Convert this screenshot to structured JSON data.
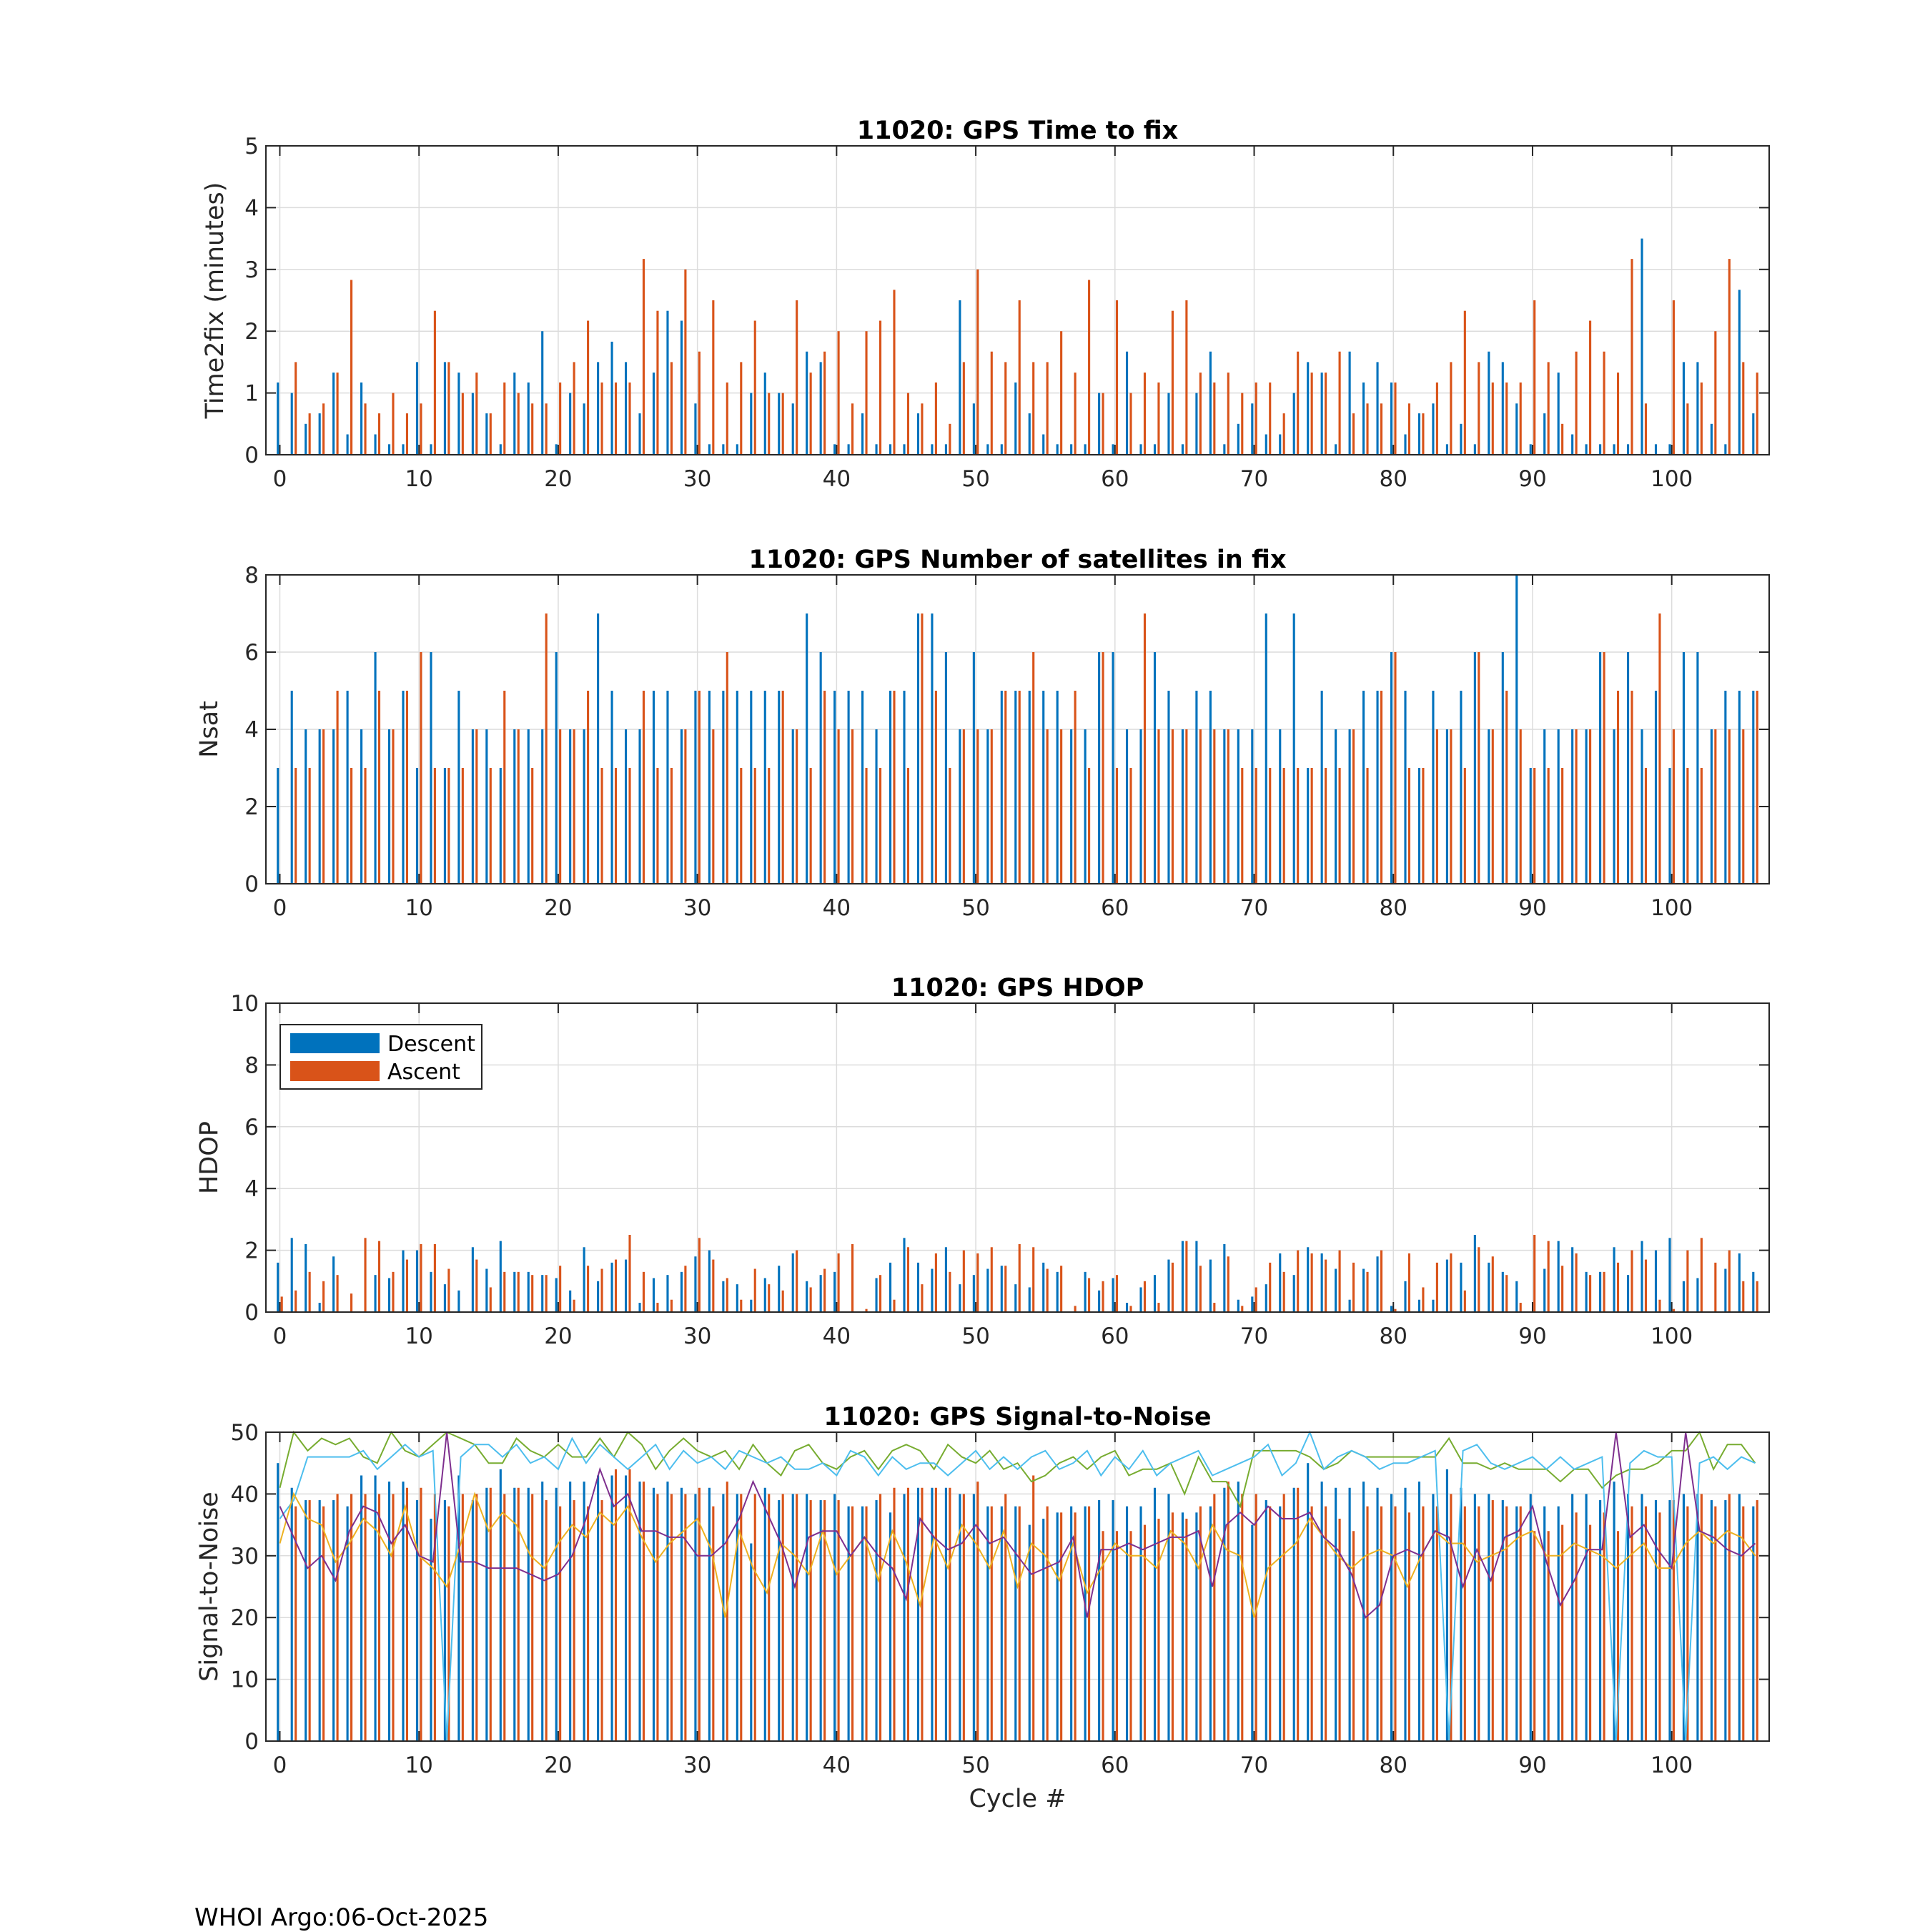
{
  "footer": "WHOI Argo:06-Oct-2025",
  "colors": {
    "descent": "#0072BD",
    "ascent": "#D95319",
    "grid": "#dcdcdc",
    "axes": "#262626"
  },
  "legend": {
    "items": [
      "Descent",
      "Ascent"
    ],
    "placement": "upper-left"
  },
  "chart_data": [
    {
      "type": "bar",
      "title": "11020: GPS Time to fix",
      "ylabel": "Time2fix (minutes)",
      "xlabel": "",
      "xlim": [
        -1,
        107
      ],
      "ylim": [
        0,
        5
      ],
      "xticks": [
        0,
        10,
        20,
        30,
        40,
        50,
        60,
        70,
        80,
        90,
        100
      ],
      "yticks": [
        0,
        1,
        2,
        3,
        4,
        5
      ],
      "grid": true,
      "series": [
        {
          "name": "Descent",
          "values": [
            1.17,
            1.0,
            0.5,
            0.67,
            1.33,
            0.33,
            1.17,
            0.33,
            0.17,
            0.17,
            1.5,
            0.17,
            1.5,
            1.33,
            1.0,
            0.67,
            0.17,
            1.33,
            1.17,
            2.0,
            0.17,
            1.0,
            0.83,
            1.5,
            1.83,
            1.5,
            0.67,
            1.33,
            2.33,
            2.17,
            0.83,
            0.17,
            0.17,
            0.17,
            1.0,
            1.33,
            1.0,
            0.83,
            1.67,
            1.5,
            0.17,
            0.17,
            0.67,
            0.17,
            0.17,
            0.17,
            0.67,
            0.17,
            0.17,
            2.5,
            0.83,
            0.17,
            0.17,
            1.17,
            0.67,
            0.33,
            0.17,
            0.17,
            0.17,
            1.0,
            0.17,
            1.67,
            0.17,
            0.17,
            1.0,
            0.17,
            1.0,
            1.67,
            0.17,
            0.5,
            0.83,
            0.33,
            0.33,
            1.0,
            1.5,
            1.33,
            0.17,
            1.67,
            1.17,
            1.5,
            1.17,
            0.33,
            0.67,
            0.83,
            0.17,
            0.5,
            0.17,
            1.67,
            1.5,
            0.83,
            0.17,
            0.67,
            1.33,
            0.33,
            0.17,
            0.17,
            0.17,
            0.17,
            3.5,
            0.17,
            0.17,
            1.5,
            1.5,
            0.5,
            0.17,
            2.67,
            0.67
          ]
        },
        {
          "name": "Ascent",
          "values": [
            0.0,
            1.5,
            0.67,
            0.83,
            1.33,
            2.83,
            0.83,
            0.67,
            1.0,
            0.67,
            0.83,
            2.33,
            1.5,
            1.0,
            1.33,
            0.67,
            1.17,
            1.0,
            0.83,
            0.83,
            1.17,
            1.5,
            2.17,
            1.17,
            1.17,
            1.17,
            3.17,
            2.33,
            1.5,
            3.0,
            1.67,
            2.5,
            1.17,
            1.5,
            2.17,
            1.0,
            1.0,
            2.5,
            1.33,
            1.67,
            2.0,
            0.83,
            2.0,
            2.17,
            2.67,
            1.0,
            0.83,
            1.17,
            0.5,
            1.5,
            3.0,
            1.67,
            1.5,
            2.5,
            1.5,
            1.5,
            2.0,
            1.33,
            2.83,
            1.0,
            2.5,
            1.0,
            1.33,
            1.17,
            2.33,
            2.5,
            1.33,
            1.17,
            1.33,
            1.0,
            1.17,
            1.17,
            0.67,
            1.67,
            1.33,
            1.33,
            1.67,
            0.67,
            0.83,
            0.83,
            1.17,
            0.83,
            0.67,
            1.17,
            1.5,
            2.33,
            1.5,
            1.17,
            1.17,
            1.17,
            2.5,
            1.5,
            0.5,
            1.67,
            2.17,
            1.67,
            1.33,
            3.17,
            0.83,
            0.0,
            2.5,
            0.83,
            1.17,
            2.0,
            3.17,
            1.5,
            1.33
          ]
        }
      ]
    },
    {
      "type": "bar",
      "title": "11020: GPS Number of satellites in fix",
      "ylabel": "Nsat",
      "xlabel": "",
      "xlim": [
        -1,
        107
      ],
      "ylim": [
        0,
        8
      ],
      "xticks": [
        0,
        10,
        20,
        30,
        40,
        50,
        60,
        70,
        80,
        90,
        100
      ],
      "yticks": [
        0,
        2,
        4,
        6,
        8
      ],
      "grid": true,
      "series": [
        {
          "name": "Descent",
          "values": [
            3,
            5,
            4,
            4,
            4,
            5,
            4,
            6,
            4,
            5,
            3,
            6,
            3,
            5,
            4,
            4,
            3,
            4,
            4,
            4,
            6,
            4,
            4,
            7,
            5,
            4,
            4,
            5,
            5,
            4,
            5,
            5,
            5,
            5,
            5,
            5,
            5,
            4,
            7,
            6,
            5,
            5,
            5,
            4,
            5,
            5,
            7,
            7,
            6,
            4,
            6,
            4,
            5,
            5,
            5,
            5,
            5,
            4,
            4,
            6,
            6,
            4,
            4,
            6,
            5,
            4,
            5,
            5,
            4,
            4,
            4,
            7,
            4,
            7,
            3,
            5,
            4,
            4,
            5,
            5,
            6,
            5,
            3,
            5,
            4,
            5,
            6,
            4,
            6,
            8,
            3,
            4,
            4,
            4,
            4,
            6,
            4,
            6,
            4,
            5,
            3,
            6,
            6,
            4,
            5,
            5,
            5
          ]
        },
        {
          "name": "Ascent",
          "values": [
            0,
            3,
            3,
            4,
            5,
            3,
            3,
            5,
            4,
            5,
            6,
            3,
            3,
            3,
            4,
            3,
            5,
            4,
            3,
            7,
            4,
            4,
            5,
            3,
            3,
            3,
            5,
            3,
            3,
            4,
            5,
            4,
            6,
            3,
            3,
            3,
            5,
            4,
            3,
            5,
            4,
            4,
            3,
            3,
            5,
            3,
            7,
            5,
            3,
            4,
            4,
            4,
            5,
            5,
            6,
            4,
            4,
            5,
            3,
            6,
            3,
            3,
            7,
            4,
            4,
            4,
            4,
            4,
            4,
            3,
            3,
            3,
            3,
            3,
            3,
            3,
            3,
            4,
            3,
            5,
            6,
            3,
            3,
            4,
            4,
            3,
            6,
            4,
            5,
            4,
            3,
            3,
            3,
            4,
            4,
            6,
            5,
            5,
            3,
            7,
            4,
            3,
            3,
            4,
            4,
            4,
            5
          ]
        }
      ]
    },
    {
      "type": "bar",
      "title": "11020: GPS HDOP",
      "ylabel": "HDOP",
      "xlabel": "",
      "xlim": [
        -1,
        107
      ],
      "ylim": [
        0,
        10
      ],
      "xticks": [
        0,
        10,
        20,
        30,
        40,
        50,
        60,
        70,
        80,
        90,
        100
      ],
      "yticks": [
        0,
        2,
        4,
        6,
        8,
        10
      ],
      "grid": true,
      "series": [
        {
          "name": "Descent",
          "values": [
            1.6,
            2.4,
            2.2,
            0.3,
            1.8,
            0.0,
            0.0,
            1.2,
            1.1,
            2.0,
            2.0,
            1.3,
            0.9,
            0.7,
            2.1,
            1.4,
            2.3,
            1.3,
            1.3,
            1.2,
            1.1,
            0.7,
            2.1,
            1.0,
            1.6,
            1.7,
            0.3,
            1.1,
            1.2,
            1.3,
            1.8,
            2.0,
            1.0,
            0.9,
            0.4,
            1.1,
            1.5,
            1.9,
            1.0,
            1.2,
            1.3,
            0.0,
            0.0,
            1.1,
            1.6,
            2.4,
            1.6,
            1.4,
            2.1,
            0.9,
            1.2,
            1.4,
            1.5,
            0.9,
            0.8,
            1.6,
            1.3,
            0.0,
            1.3,
            0.7,
            1.1,
            0.3,
            0.8,
            1.2,
            1.7,
            2.3,
            2.3,
            1.7,
            2.2,
            0.4,
            0.5,
            0.9,
            1.9,
            1.2,
            2.1,
            1.9,
            1.4,
            0.4,
            1.4,
            1.8,
            0.2,
            1.0,
            0.4,
            0.4,
            1.7,
            1.6,
            2.5,
            1.6,
            1.3,
            1.0,
            0.0,
            1.4,
            2.3,
            2.1,
            1.3,
            1.3,
            2.1,
            1.2,
            2.3,
            2.0,
            2.4,
            1.0,
            1.1,
            0.0,
            1.4,
            1.9,
            1.3
          ]
        },
        {
          "name": "Ascent",
          "values": [
            0.5,
            0.7,
            1.3,
            1.0,
            1.2,
            0.6,
            2.4,
            2.3,
            1.3,
            1.7,
            2.2,
            2.2,
            1.4,
            0.0,
            1.7,
            0.8,
            1.3,
            1.3,
            1.2,
            1.2,
            1.5,
            0.4,
            1.5,
            1.4,
            1.7,
            2.5,
            1.3,
            0.3,
            0.4,
            1.5,
            2.4,
            1.7,
            1.1,
            0.4,
            1.4,
            0.9,
            0.7,
            2.0,
            0.8,
            1.4,
            1.9,
            2.2,
            0.1,
            1.2,
            0.4,
            2.1,
            0.9,
            1.9,
            1.3,
            2.0,
            1.9,
            2.1,
            1.5,
            2.2,
            2.1,
            1.4,
            1.5,
            0.2,
            1.1,
            1.0,
            1.2,
            0.2,
            1.0,
            0.3,
            1.6,
            2.3,
            1.5,
            0.3,
            1.8,
            0.2,
            0.8,
            1.6,
            1.3,
            2.0,
            1.9,
            1.7,
            2.0,
            1.6,
            1.3,
            2.0,
            0.1,
            1.9,
            0.8,
            1.6,
            1.9,
            0.7,
            2.1,
            1.8,
            1.2,
            0.3,
            2.5,
            2.3,
            1.5,
            1.9,
            1.2,
            1.3,
            1.6,
            2.0,
            1.7,
            0.4,
            0.1,
            2.0,
            2.4,
            1.6,
            2.0,
            1.0,
            1.0
          ]
        }
      ]
    },
    {
      "type": "bar",
      "title": "11020: GPS Signal-to-Noise",
      "ylabel": "Signal-to-Noise",
      "xlabel": "Cycle #",
      "xlim": [
        -1,
        107
      ],
      "ylim": [
        0,
        50
      ],
      "xticks": [
        0,
        10,
        20,
        30,
        40,
        50,
        60,
        70,
        80,
        90,
        100
      ],
      "yticks": [
        0,
        10,
        20,
        30,
        40,
        50
      ],
      "grid": true,
      "series": [
        {
          "name": "Descent",
          "values": [
            45,
            41,
            39,
            39,
            39,
            38,
            43,
            43,
            42,
            42,
            39,
            36,
            39,
            43,
            39,
            41,
            44,
            41,
            41,
            42,
            41,
            42,
            42,
            43,
            43,
            43,
            42,
            41,
            42,
            41,
            40,
            41,
            40,
            40,
            32,
            41,
            39,
            40,
            40,
            39,
            40,
            38,
            38,
            39,
            37,
            40,
            41,
            41,
            41,
            40,
            40,
            38,
            38,
            38,
            35,
            36,
            37,
            38,
            38,
            39,
            39,
            38,
            38,
            41,
            40,
            37,
            37,
            38,
            41,
            42,
            35,
            39,
            38,
            41,
            45,
            42,
            41,
            41,
            42,
            41,
            40,
            41,
            42,
            40,
            44,
            41,
            40,
            40,
            39,
            38,
            40,
            38,
            38,
            40,
            40,
            39,
            42,
            40,
            40,
            39,
            39,
            40,
            40,
            39,
            39,
            40,
            38
          ]
        },
        {
          "name": "Ascent",
          "values": [
            0,
            38,
            39,
            38,
            40,
            40,
            40,
            40,
            40,
            41,
            41,
            40,
            38,
            40,
            40,
            41,
            40,
            41,
            40,
            39,
            38,
            39,
            38,
            39,
            44,
            44,
            42,
            40,
            40,
            40,
            41,
            38,
            42,
            40,
            40,
            40,
            40,
            40,
            39,
            39,
            39,
            38,
            38,
            40,
            41,
            41,
            41,
            41,
            41,
            40,
            42,
            38,
            40,
            38,
            43,
            38,
            37,
            37,
            38,
            34,
            34,
            34,
            35,
            36,
            37,
            36,
            38,
            40,
            42,
            40,
            40,
            38,
            40,
            41,
            38,
            38,
            36,
            34,
            38,
            38,
            38,
            37,
            38,
            38,
            40,
            38,
            38,
            39,
            38,
            38,
            34,
            34,
            35,
            37,
            35,
            37,
            34,
            38,
            38,
            37,
            39,
            38,
            40,
            38,
            40,
            38,
            39
          ]
        }
      ]
    }
  ]
}
